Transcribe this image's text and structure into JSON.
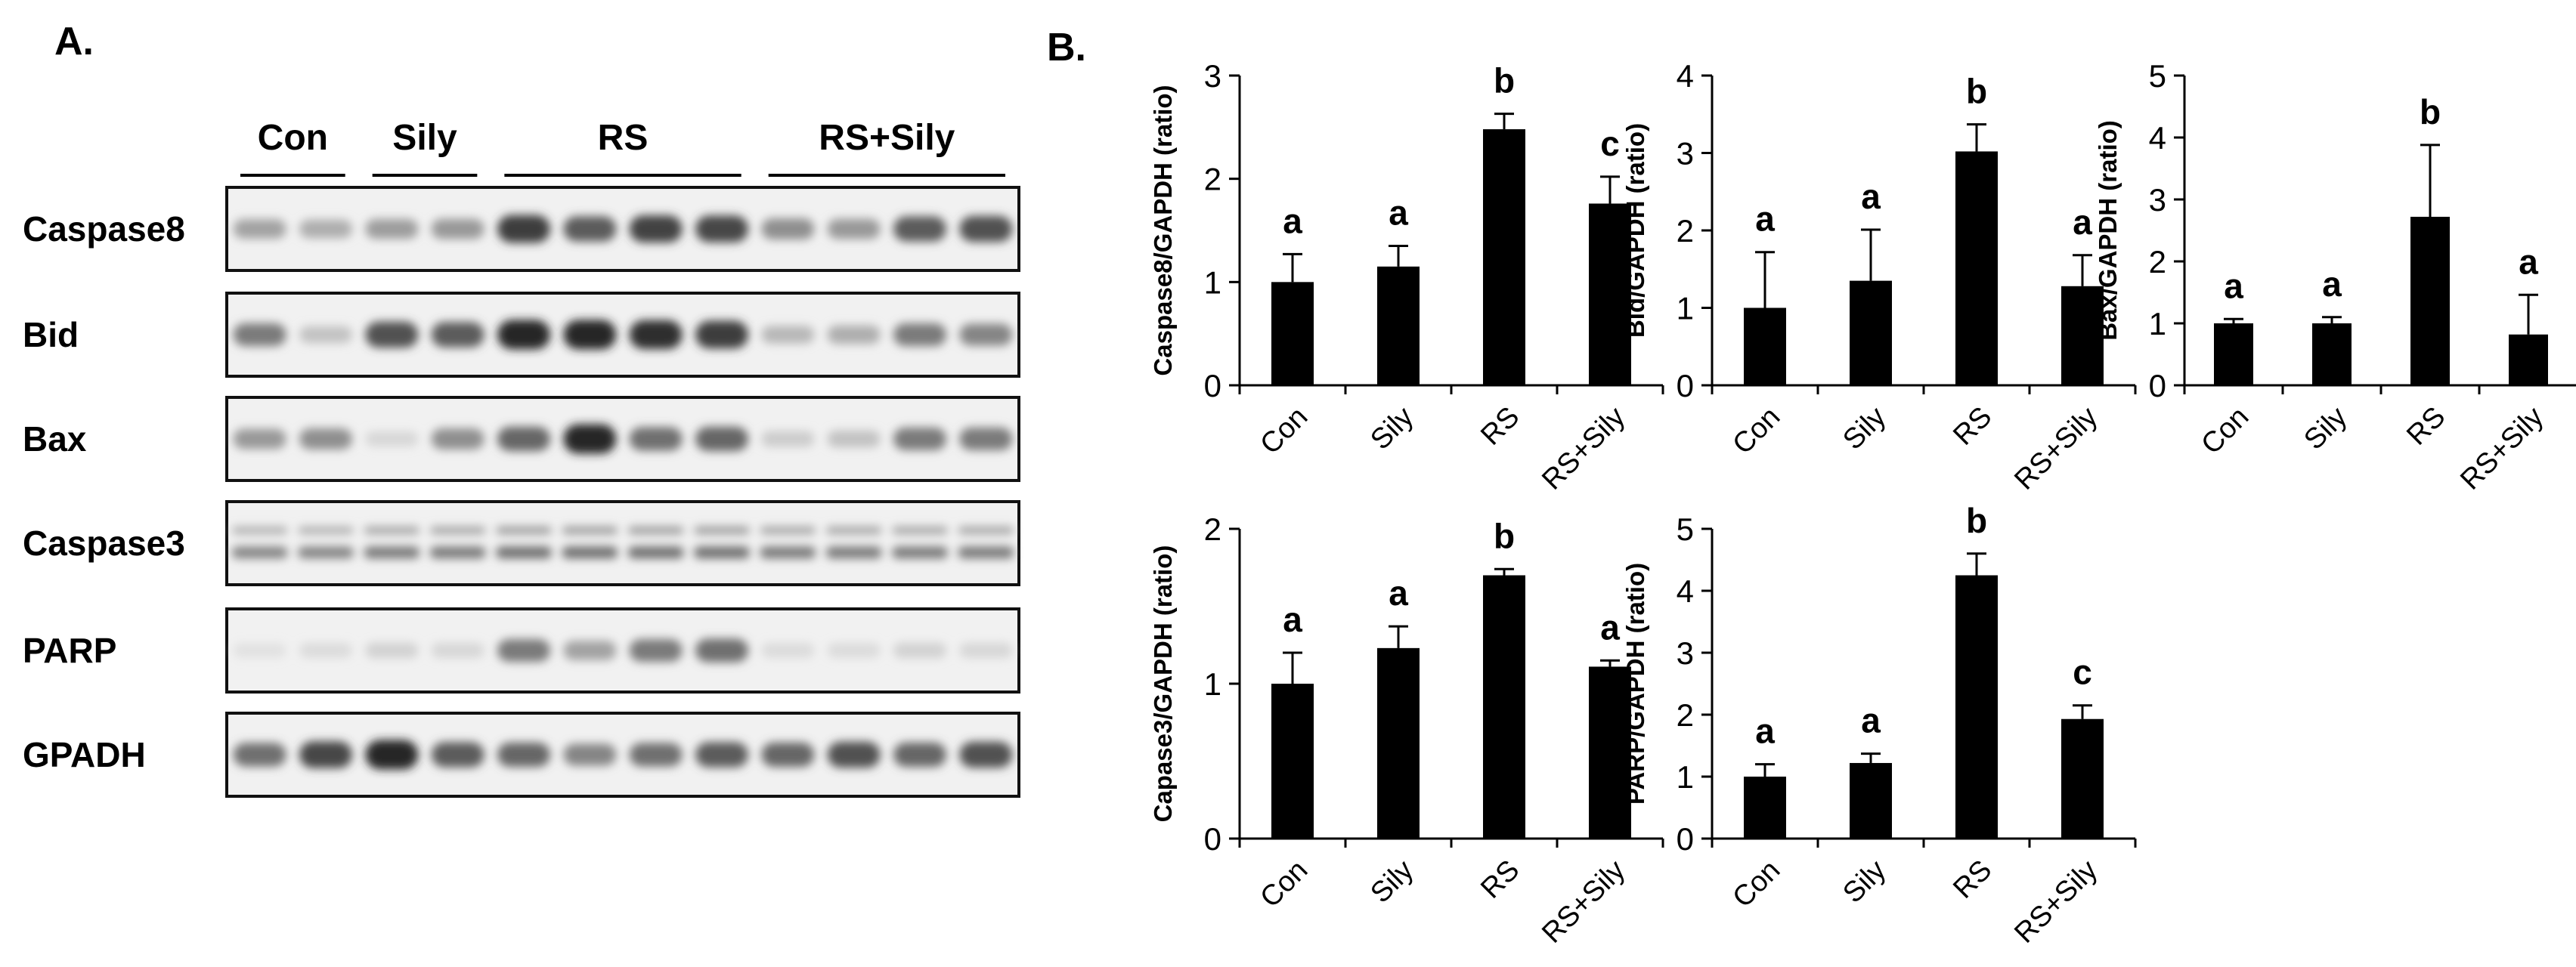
{
  "panel_a": {
    "letter": "A.",
    "groups": [
      "Con",
      "Sily",
      "RS",
      "RS+Sily"
    ],
    "proteins": [
      {
        "name": "Caspase8",
        "lanes": [
          0.35,
          0.3,
          0.38,
          0.4,
          0.85,
          0.7,
          0.82,
          0.8,
          0.45,
          0.4,
          0.7,
          0.75
        ],
        "style": "single"
      },
      {
        "name": "Bid",
        "lanes": [
          0.55,
          0.2,
          0.75,
          0.7,
          0.95,
          0.95,
          0.92,
          0.85,
          0.25,
          0.3,
          0.55,
          0.5
        ],
        "style": "single"
      },
      {
        "name": "Bax",
        "lanes": [
          0.4,
          0.45,
          0.1,
          0.45,
          0.65,
          0.95,
          0.6,
          0.65,
          0.15,
          0.2,
          0.55,
          0.55
        ],
        "style": "single"
      },
      {
        "name": "Caspase3",
        "lanes": [
          0.5,
          0.5,
          0.55,
          0.55,
          0.6,
          0.6,
          0.6,
          0.6,
          0.55,
          0.55,
          0.55,
          0.55
        ],
        "style": "double"
      },
      {
        "name": "PARP",
        "lanes": [
          0.05,
          0.08,
          0.12,
          0.1,
          0.55,
          0.35,
          0.55,
          0.6,
          0.08,
          0.08,
          0.12,
          0.1
        ],
        "style": "single"
      },
      {
        "name": "GPADH",
        "lanes": [
          0.6,
          0.8,
          0.95,
          0.7,
          0.65,
          0.5,
          0.6,
          0.7,
          0.65,
          0.75,
          0.65,
          0.75
        ],
        "style": "single"
      }
    ]
  },
  "panel_b": {
    "letter": "B."
  },
  "chart_data": [
    {
      "type": "bar",
      "ylabel": "Caspase8/GAPDH (ratio)",
      "categories": [
        "Con",
        "Sily",
        "RS",
        "RS+Sily"
      ],
      "values": [
        1.0,
        1.15,
        2.48,
        1.76
      ],
      "errors": [
        0.27,
        0.2,
        0.15,
        0.26
      ],
      "letters": [
        "a",
        "a",
        "b",
        "c"
      ],
      "ylim": [
        0,
        3
      ],
      "yticks": [
        0,
        1,
        2,
        3
      ]
    },
    {
      "type": "bar",
      "ylabel": "Bid/GAPDH (ratio)",
      "categories": [
        "Con",
        "Sily",
        "RS",
        "RS+Sily"
      ],
      "values": [
        1.0,
        1.35,
        3.02,
        1.28
      ],
      "errors": [
        0.72,
        0.66,
        0.35,
        0.4
      ],
      "letters": [
        "a",
        "a",
        "b",
        "a"
      ],
      "ylim": [
        0,
        4
      ],
      "yticks": [
        0,
        1,
        2,
        3,
        4
      ]
    },
    {
      "type": "bar",
      "ylabel": "Bax/GAPDH (ratio)",
      "categories": [
        "Con",
        "Sily",
        "RS",
        "RS+Sily"
      ],
      "values": [
        1.0,
        1.0,
        2.72,
        0.82
      ],
      "errors": [
        0.07,
        0.1,
        1.16,
        0.64
      ],
      "letters": [
        "a",
        "a",
        "b",
        "a"
      ],
      "ylim": [
        0,
        5
      ],
      "yticks": [
        0,
        1,
        2,
        3,
        4,
        5
      ]
    },
    {
      "type": "bar",
      "ylabel": "Capase3/GAPDH (ratio)",
      "categories": [
        "Con",
        "Sily",
        "RS",
        "RS+Sily"
      ],
      "values": [
        1.0,
        1.23,
        1.7,
        1.11
      ],
      "errors": [
        0.2,
        0.14,
        0.04,
        0.04
      ],
      "letters": [
        "a",
        "a",
        "b",
        "a"
      ],
      "ylim": [
        0,
        2
      ],
      "yticks": [
        0,
        1,
        2
      ]
    },
    {
      "type": "bar",
      "ylabel": "PARP/GAPDH (ratio)",
      "categories": [
        "Con",
        "Sily",
        "RS",
        "RS+Sily"
      ],
      "values": [
        1.0,
        1.22,
        4.25,
        1.93
      ],
      "errors": [
        0.2,
        0.15,
        0.35,
        0.22
      ],
      "letters": [
        "a",
        "a",
        "b",
        "c"
      ],
      "ylim": [
        0,
        5
      ],
      "yticks": [
        0,
        1,
        2,
        3,
        4,
        5
      ]
    }
  ]
}
